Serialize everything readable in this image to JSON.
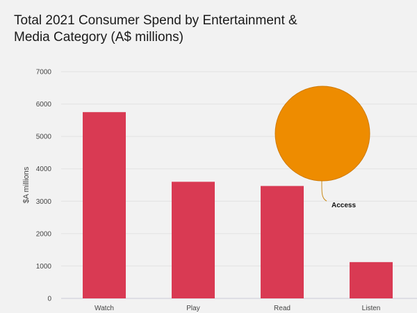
{
  "chart_data": {
    "type": "bar",
    "title_lines": [
      "Total 2021 Consumer Spend by Entertainment &",
      "Media Category (A$ millions)"
    ],
    "xlabel": "",
    "ylabel": "$A millions",
    "ylim": [
      0,
      7000
    ],
    "yticks": [
      "0",
      "1000",
      "2000",
      "3000",
      "4000",
      "5000",
      "6000",
      "7000"
    ],
    "grid": true,
    "categories": [
      "Watch",
      "Play",
      "Read",
      "Listen"
    ],
    "values": [
      5750,
      3600,
      3470,
      1120
    ],
    "bar_color": "#d93a53",
    "annotation": {
      "label": "Access",
      "type": "bubble",
      "color": "#ee8c00",
      "anchor_category": "Read",
      "anchor_value": 3470
    }
  }
}
